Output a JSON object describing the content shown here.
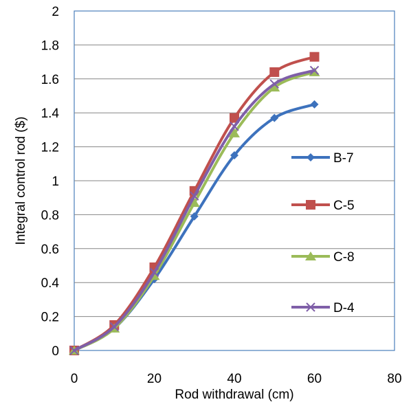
{
  "chart_data": {
    "type": "line",
    "title": "",
    "xlabel": "Rod withdrawal (cm)",
    "ylabel": "Integral control rod ($)",
    "xlim": [
      0,
      80
    ],
    "ylim": [
      0,
      2
    ],
    "x_ticks": [
      "0",
      "20",
      "40",
      "60",
      "80"
    ],
    "y_ticks": [
      "0",
      "0.2",
      "0.4",
      "0.6",
      "0.8",
      "1",
      "1.2",
      "1.4",
      "1.6",
      "1.8",
      "2"
    ],
    "grid": "horizontal",
    "legend_position": "right",
    "x": [
      0,
      10,
      20,
      30,
      40,
      50,
      60
    ],
    "series": [
      {
        "name": "B-7",
        "color": "#3d72bd",
        "marker": "diamond",
        "values": [
          0,
          0.13,
          0.42,
          0.79,
          1.15,
          1.37,
          1.45
        ]
      },
      {
        "name": "C-5",
        "color": "#c0504d",
        "marker": "square",
        "values": [
          0,
          0.15,
          0.49,
          0.94,
          1.37,
          1.64,
          1.73
        ]
      },
      {
        "name": "C-8",
        "color": "#9bbb59",
        "marker": "triangle",
        "values": [
          0,
          0.13,
          0.44,
          0.87,
          1.28,
          1.55,
          1.64
        ]
      },
      {
        "name": "D-4",
        "color": "#7f5fa8",
        "marker": "x",
        "values": [
          0,
          0.14,
          0.46,
          0.91,
          1.32,
          1.57,
          1.65
        ]
      }
    ]
  }
}
